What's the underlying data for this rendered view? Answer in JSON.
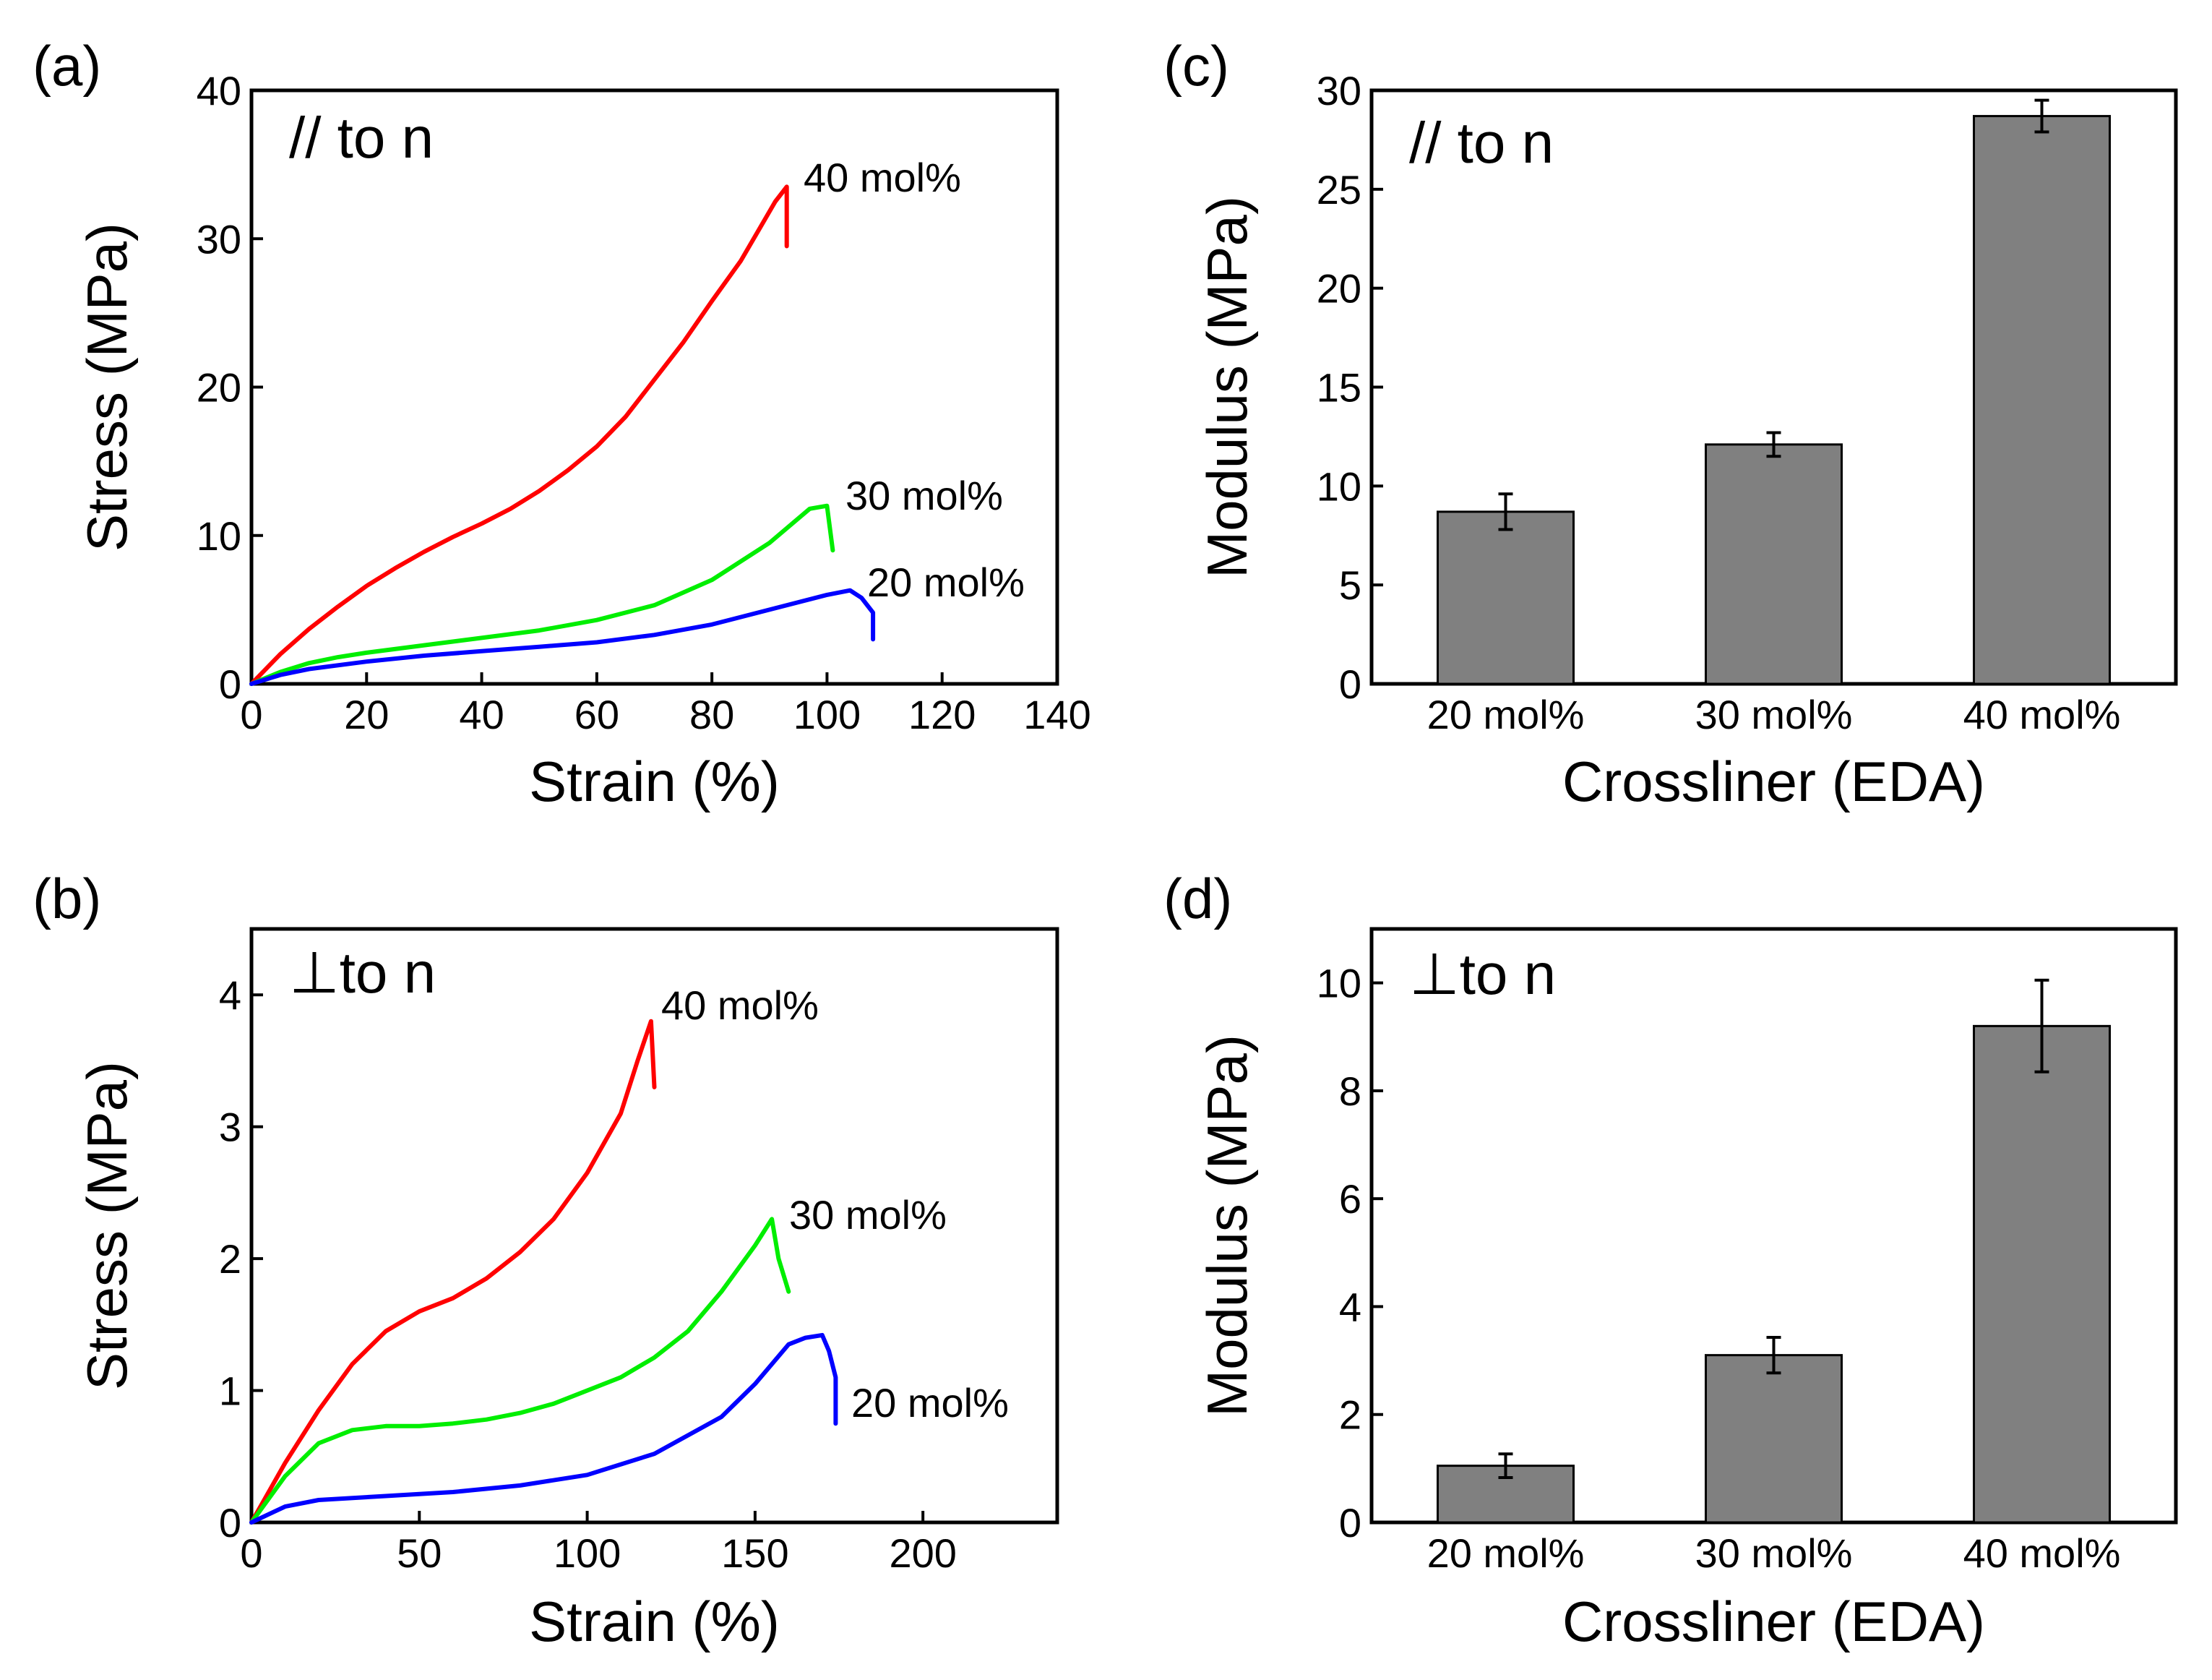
{
  "chart_data": [
    {
      "id": "a",
      "panel_label": "(a)",
      "type": "line",
      "orientation_label": "// to n",
      "xlabel": "Strain (%)",
      "ylabel": "Stress (MPa)",
      "xlim": [
        0,
        140
      ],
      "ylim": [
        0,
        40
      ],
      "xticks": [
        0,
        20,
        40,
        60,
        80,
        100,
        120,
        140
      ],
      "yticks": [
        0,
        10,
        20,
        30,
        40
      ],
      "grid": false,
      "series": [
        {
          "name": "40 mol%",
          "color": "#ff0000",
          "points": [
            [
              0,
              0
            ],
            [
              5,
              2
            ],
            [
              10,
              3.7
            ],
            [
              15,
              5.2
            ],
            [
              20,
              6.6
            ],
            [
              25,
              7.8
            ],
            [
              30,
              8.9
            ],
            [
              35,
              9.9
            ],
            [
              40,
              10.8
            ],
            [
              45,
              11.8
            ],
            [
              50,
              13
            ],
            [
              55,
              14.4
            ],
            [
              60,
              16
            ],
            [
              65,
              18
            ],
            [
              70,
              20.5
            ],
            [
              75,
              23
            ],
            [
              80,
              25.8
            ],
            [
              85,
              28.5
            ],
            [
              88,
              30.5
            ],
            [
              91,
              32.5
            ],
            [
              93,
              33.5
            ],
            [
              93,
              29.5
            ]
          ]
        },
        {
          "name": "30 mol%",
          "color": "#00ee00",
          "points": [
            [
              0,
              0
            ],
            [
              5,
              0.8
            ],
            [
              10,
              1.4
            ],
            [
              15,
              1.8
            ],
            [
              20,
              2.1
            ],
            [
              30,
              2.6
            ],
            [
              40,
              3.1
            ],
            [
              50,
              3.6
            ],
            [
              60,
              4.3
            ],
            [
              70,
              5.3
            ],
            [
              80,
              7
            ],
            [
              90,
              9.5
            ],
            [
              97,
              11.8
            ],
            [
              100,
              12
            ],
            [
              101,
              9
            ]
          ]
        },
        {
          "name": "20 mol%",
          "color": "#0000ff",
          "points": [
            [
              0,
              0
            ],
            [
              5,
              0.6
            ],
            [
              10,
              1
            ],
            [
              20,
              1.5
            ],
            [
              30,
              1.9
            ],
            [
              40,
              2.2
            ],
            [
              50,
              2.5
            ],
            [
              60,
              2.8
            ],
            [
              70,
              3.3
            ],
            [
              80,
              4
            ],
            [
              90,
              5
            ],
            [
              100,
              6
            ],
            [
              104,
              6.3
            ],
            [
              106,
              5.8
            ],
            [
              108,
              4.8
            ],
            [
              108,
              3
            ]
          ]
        }
      ]
    },
    {
      "id": "b",
      "panel_label": "(b)",
      "type": "line",
      "orientation_label": "⊥to n",
      "xlabel": "Strain (%)",
      "ylabel": "Stress (MPa)",
      "xlim": [
        0,
        240
      ],
      "ylim": [
        0,
        4.5
      ],
      "xticks": [
        0,
        50,
        100,
        150,
        200
      ],
      "yticks": [
        0,
        1,
        2,
        3,
        4
      ],
      "grid": false,
      "series": [
        {
          "name": "40 mol%",
          "color": "#ff0000",
          "points": [
            [
              0,
              0
            ],
            [
              10,
              0.45
            ],
            [
              20,
              0.85
            ],
            [
              30,
              1.2
            ],
            [
              40,
              1.45
            ],
            [
              50,
              1.6
            ],
            [
              60,
              1.7
            ],
            [
              70,
              1.85
            ],
            [
              80,
              2.05
            ],
            [
              90,
              2.3
            ],
            [
              100,
              2.65
            ],
            [
              110,
              3.1
            ],
            [
              115,
              3.5
            ],
            [
              119,
              3.8
            ],
            [
              120,
              3.3
            ]
          ]
        },
        {
          "name": "30 mol%",
          "color": "#00ee00",
          "points": [
            [
              0,
              0
            ],
            [
              10,
              0.35
            ],
            [
              20,
              0.6
            ],
            [
              30,
              0.7
            ],
            [
              40,
              0.73
            ],
            [
              50,
              0.73
            ],
            [
              60,
              0.75
            ],
            [
              70,
              0.78
            ],
            [
              80,
              0.83
            ],
            [
              90,
              0.9
            ],
            [
              100,
              1
            ],
            [
              110,
              1.1
            ],
            [
              120,
              1.25
            ],
            [
              130,
              1.45
            ],
            [
              140,
              1.75
            ],
            [
              150,
              2.1
            ],
            [
              155,
              2.3
            ],
            [
              157,
              2
            ],
            [
              160,
              1.75
            ]
          ]
        },
        {
          "name": "20 mol%",
          "color": "#0000ff",
          "points": [
            [
              0,
              0
            ],
            [
              10,
              0.12
            ],
            [
              20,
              0.17
            ],
            [
              40,
              0.2
            ],
            [
              60,
              0.23
            ],
            [
              80,
              0.28
            ],
            [
              100,
              0.36
            ],
            [
              120,
              0.52
            ],
            [
              140,
              0.8
            ],
            [
              150,
              1.05
            ],
            [
              160,
              1.35
            ],
            [
              165,
              1.4
            ],
            [
              170,
              1.42
            ],
            [
              172,
              1.3
            ],
            [
              174,
              1.1
            ],
            [
              174,
              0.75
            ]
          ]
        }
      ]
    },
    {
      "id": "c",
      "panel_label": "(c)",
      "type": "bar",
      "orientation_label": "// to n",
      "xlabel": "Crossliner (EDA)",
      "ylabel": "Modulus (MPa)",
      "categories": [
        "20 mol%",
        "30 mol%",
        "40 mol%"
      ],
      "values": [
        8.7,
        12.1,
        28.7
      ],
      "errors": [
        0.9,
        0.6,
        0.8
      ],
      "ylim": [
        0,
        30
      ],
      "ylim_max": 30,
      "yticks": [
        0,
        5,
        10,
        15,
        20,
        25,
        30
      ],
      "bar_color": "#808080",
      "grid": false
    },
    {
      "id": "d",
      "panel_label": "(d)",
      "type": "bar",
      "orientation_label": "⊥to n",
      "xlabel": "Crossliner (EDA)",
      "ylabel": "Modulus (MPa)",
      "categories": [
        "20 mol%",
        "30 mol%",
        "40 mol%"
      ],
      "values": [
        1.05,
        3.1,
        9.2
      ],
      "errors": [
        0.22,
        0.33,
        0.85
      ],
      "ylim": [
        0,
        11
      ],
      "ylim_max": 11,
      "yticks": [
        0,
        2,
        4,
        6,
        8,
        10
      ],
      "bar_color": "#808080",
      "grid": false
    }
  ]
}
